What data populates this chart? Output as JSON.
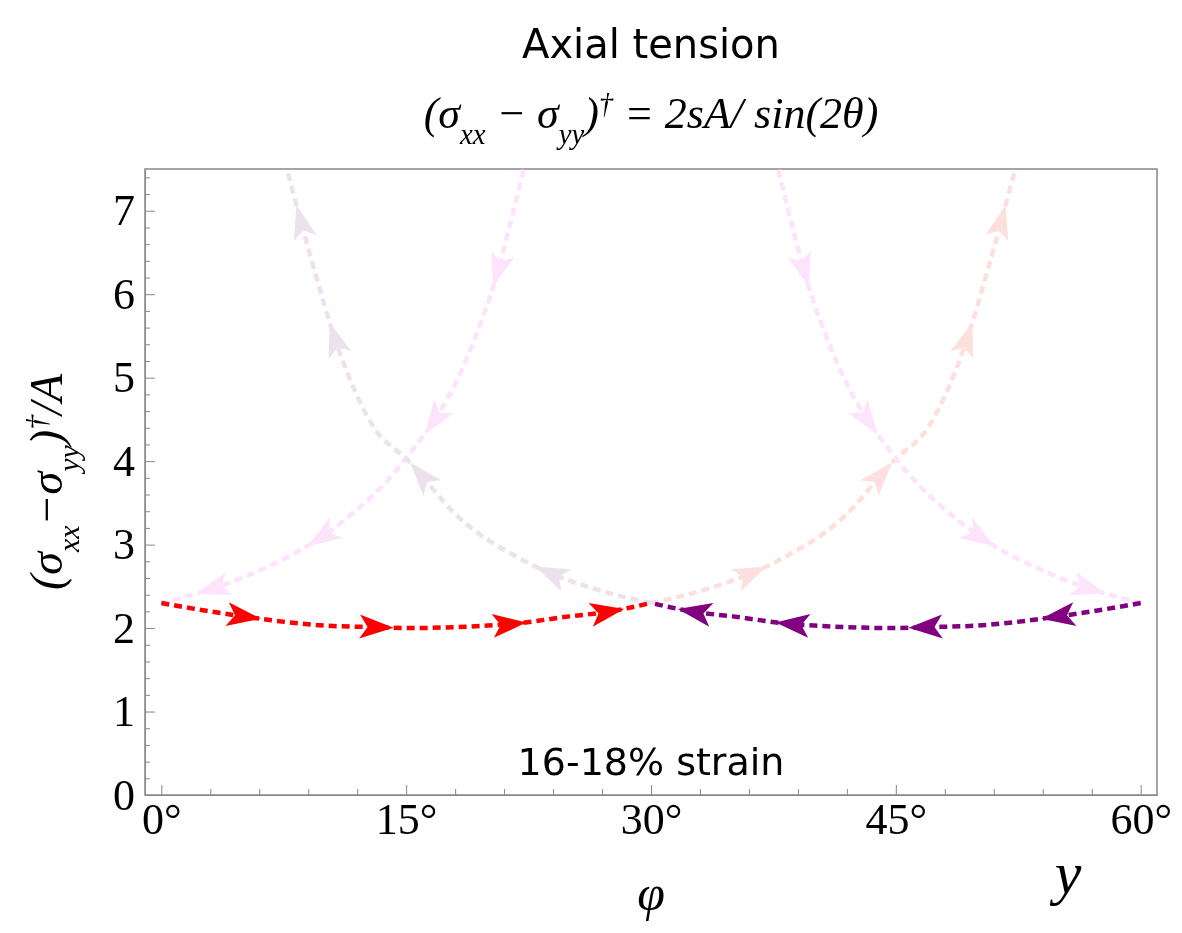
{
  "chart_data": {
    "type": "line",
    "title": "Axial tension",
    "subtitle": "(σ$_{xx}$ − σ$_{yy}$)$^{†}$ = 2sA/ sin(2θ)",
    "xlabel": "φ",
    "ylabel": "(σ$_{xx}$−σ$_{yy}$)$^{†}$/A",
    "xlim": [
      -1,
      61
    ],
    "ylim": [
      0,
      7.5
    ],
    "xticks": [
      {
        "value": 0,
        "label": "0°"
      },
      {
        "value": 3,
        "label": null
      },
      {
        "value": 6,
        "label": null
      },
      {
        "value": 9,
        "label": null
      },
      {
        "value": 12,
        "label": null
      },
      {
        "value": 15,
        "label": "15°"
      },
      {
        "value": 18,
        "label": null
      },
      {
        "value": 21,
        "label": null
      },
      {
        "value": 24,
        "label": null
      },
      {
        "value": 27,
        "label": null
      },
      {
        "value": 30,
        "label": "30°"
      },
      {
        "value": 33,
        "label": null
      },
      {
        "value": 36,
        "label": null
      },
      {
        "value": 39,
        "label": null
      },
      {
        "value": 42,
        "label": null
      },
      {
        "value": 45,
        "label": "45°"
      },
      {
        "value": 48,
        "label": null
      },
      {
        "value": 51,
        "label": null
      },
      {
        "value": 54,
        "label": null
      },
      {
        "value": 57,
        "label": null
      },
      {
        "value": 60,
        "label": "60°"
      }
    ],
    "yticks": [
      0,
      {
        "value": 0.2,
        "label": null
      },
      {
        "value": 0.4,
        "label": null
      },
      {
        "value": 0.6,
        "label": null
      },
      {
        "value": 0.8,
        "label": null
      },
      1,
      {
        "value": 1.2,
        "label": null
      },
      {
        "value": 1.4,
        "label": null
      },
      {
        "value": 1.6,
        "label": null
      },
      {
        "value": 1.8,
        "label": null
      },
      2,
      {
        "value": 2.2,
        "label": null
      },
      {
        "value": 2.4,
        "label": null
      },
      {
        "value": 2.6,
        "label": null
      },
      {
        "value": 2.8,
        "label": null
      },
      3,
      {
        "value": 3.2,
        "label": null
      },
      {
        "value": 3.4,
        "label": null
      },
      {
        "value": 3.6,
        "label": null
      },
      {
        "value": 3.8,
        "label": null
      },
      4,
      {
        "value": 4.2,
        "label": null
      },
      {
        "value": 4.4,
        "label": null
      },
      {
        "value": 4.6,
        "label": null
      },
      {
        "value": 4.8,
        "label": null
      },
      5,
      {
        "value": 5.2,
        "label": null
      },
      {
        "value": 5.4,
        "label": null
      },
      {
        "value": 5.6,
        "label": null
      },
      {
        "value": 5.8,
        "label": null
      },
      6,
      {
        "value": 6.2,
        "label": null
      },
      {
        "value": 6.4,
        "label": null
      },
      {
        "value": 6.6,
        "label": null
      },
      {
        "value": 6.8,
        "label": null
      },
      7,
      {
        "value": 7.2,
        "label": null
      },
      {
        "value": 7.4,
        "label": null
      }
    ],
    "line_style": "dashed",
    "series": [
      {
        "color": "#fde3fb",
        "x": [
          22.2,
          20.2,
          18.4,
          14.9,
          11.0,
          5.3,
          0
        ],
        "values": [
          7.49,
          6.01,
          5.09,
          4.01,
          3.26,
          2.63,
          2.3
        ]
      },
      {
        "color": "#eee1ee",
        "x": [
          30,
          27.4,
          22.2,
          18.2,
          15.1,
          13.0,
          10.8,
          9.2,
          7.7
        ],
        "values": [
          2.3,
          2.42,
          2.81,
          3.33,
          4.01,
          4.41,
          5.37,
          6.41,
          7.49
        ]
      },
      {
        "color": "#fde0de",
        "x": [
          30,
          32.6,
          37.8,
          41.8,
          44.9,
          47.0,
          49.2,
          50.8,
          52.3
        ],
        "values": [
          2.3,
          2.42,
          2.81,
          3.33,
          4.01,
          4.41,
          5.37,
          6.41,
          7.49
        ]
      },
      {
        "color": "#fde3fb",
        "x": [
          37.8,
          39.8,
          41.6,
          45.1,
          49.0,
          54.7,
          60
        ],
        "values": [
          7.49,
          6.01,
          5.09,
          4.01,
          3.26,
          2.63,
          2.3
        ]
      },
      {
        "color": "#ff0000",
        "x": [
          0,
          5,
          10,
          13.2,
          15,
          20,
          21.5,
          25,
          27.2,
          30
        ],
        "values": [
          2.3,
          2.14,
          2.03,
          2.01,
          2.0,
          2.03,
          2.05,
          2.14,
          2.19,
          2.3
        ]
      },
      {
        "color": "#800080",
        "x": [
          60,
          55,
          50,
          46.8,
          45,
          40,
          38.5,
          35,
          32.8,
          30
        ],
        "values": [
          2.3,
          2.14,
          2.03,
          2.01,
          2.0,
          2.03,
          2.05,
          2.14,
          2.19,
          2.3
        ]
      }
    ],
    "annotations": [
      "16-18% strain",
      "y"
    ]
  }
}
